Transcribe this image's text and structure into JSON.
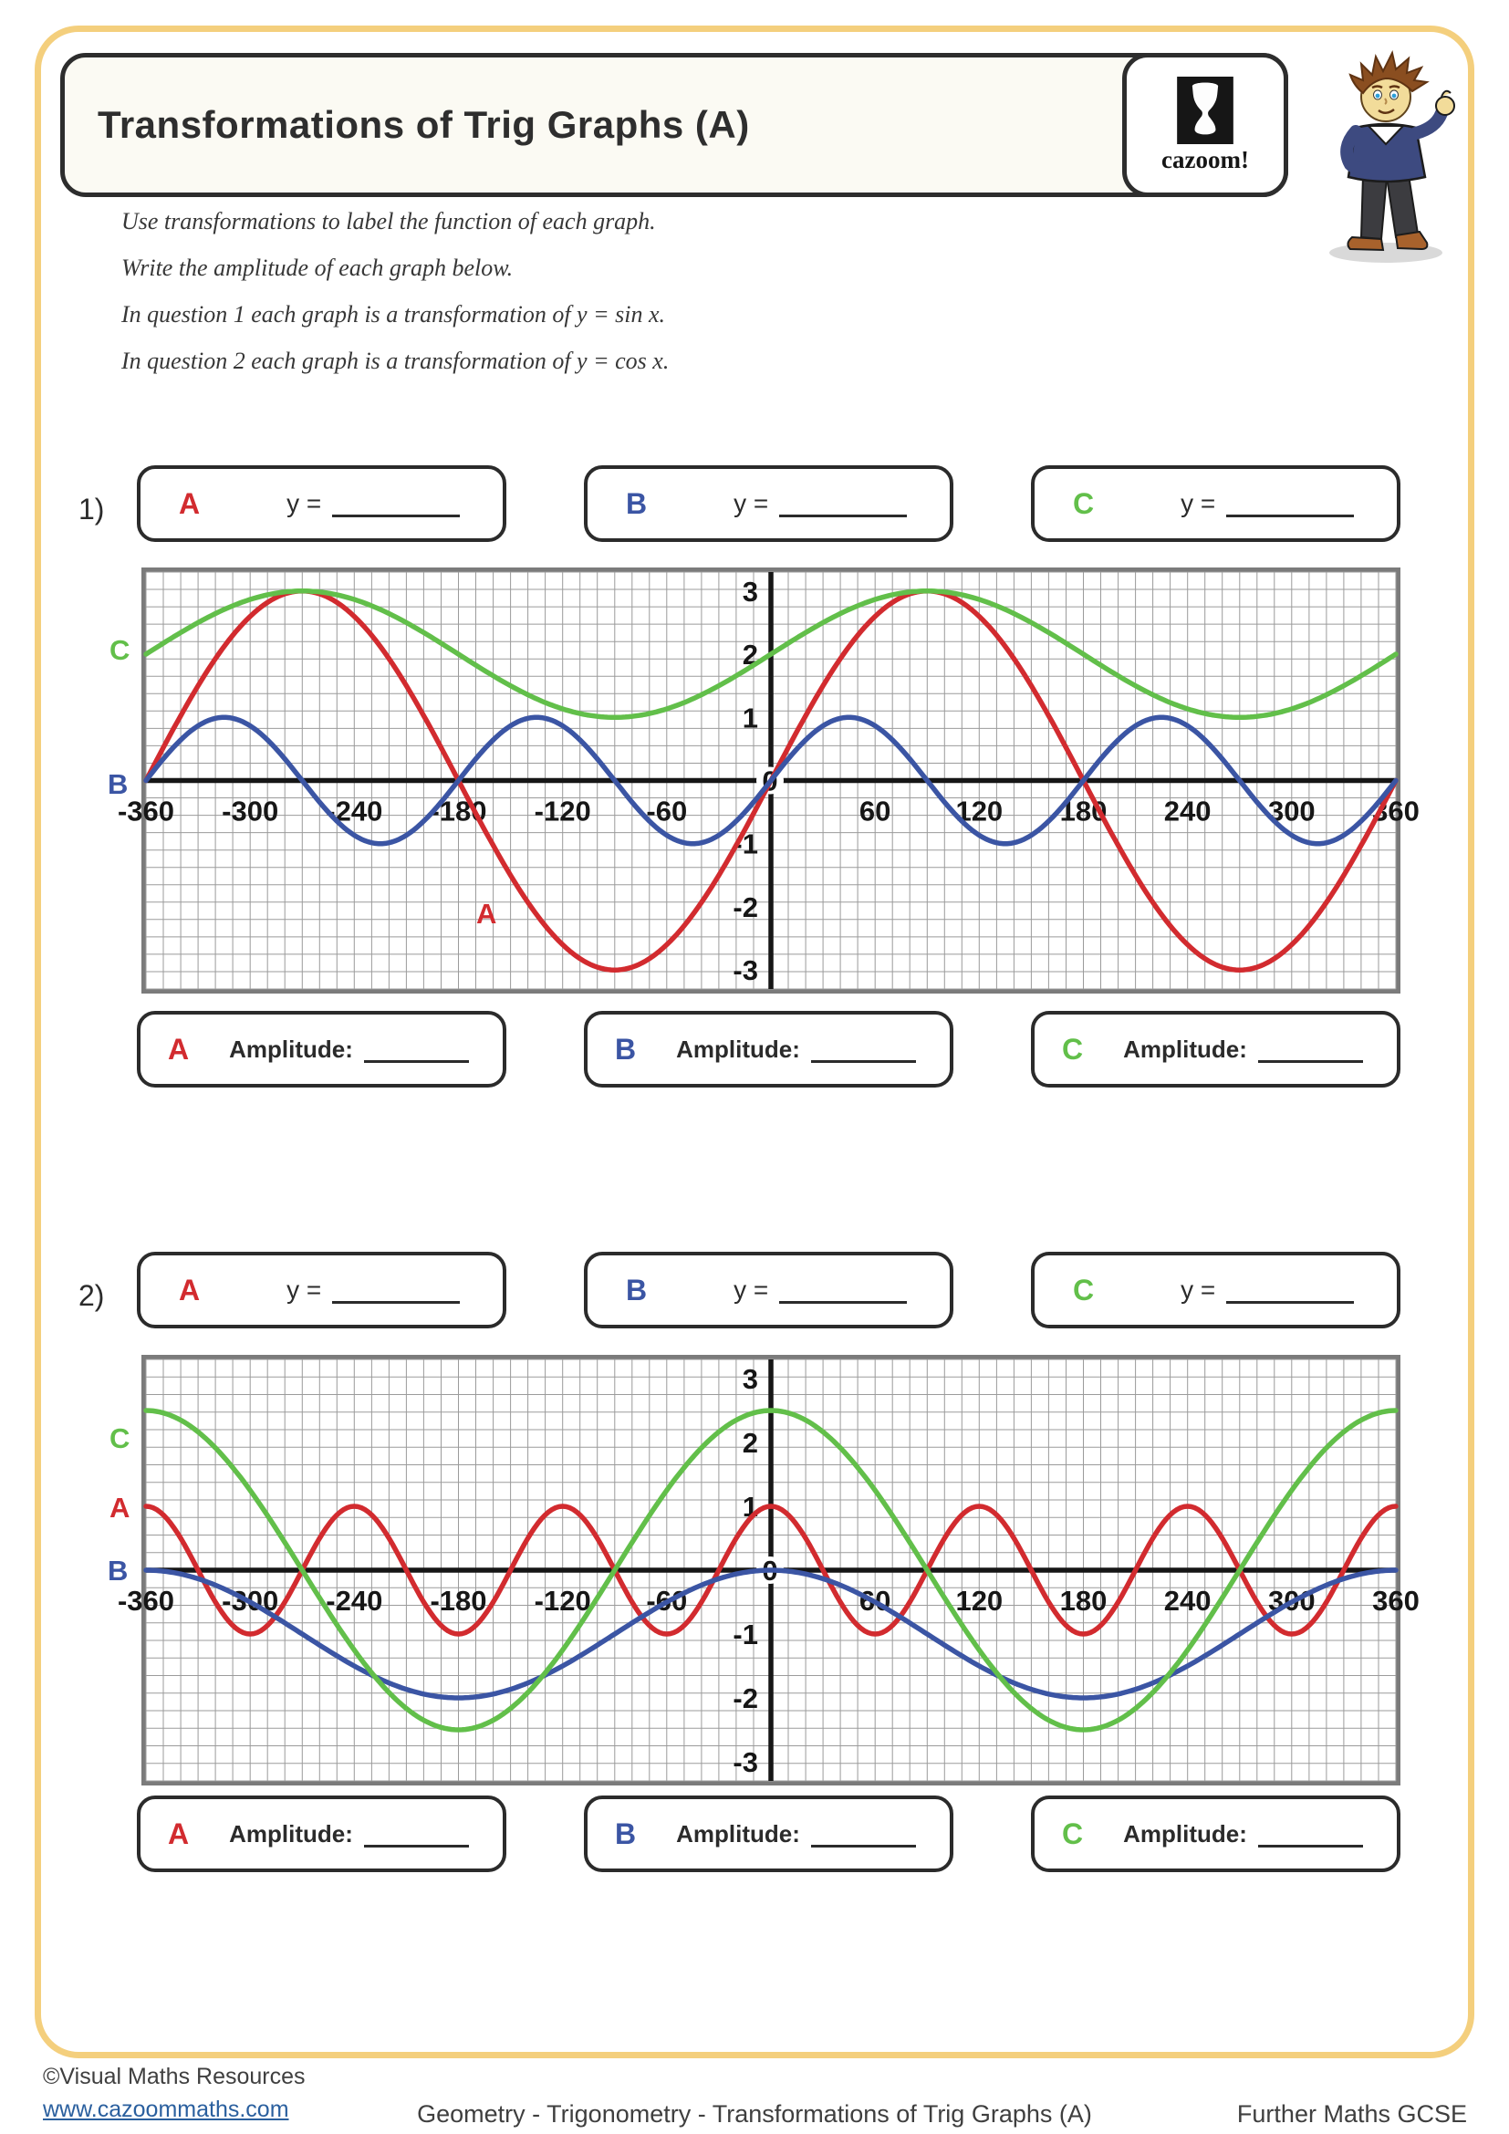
{
  "header": {
    "title": "Transformations of Trig Graphs (A)",
    "logo_text": "cazoom!"
  },
  "instructions": [
    "Use transformations to label the function of each graph.",
    "Write the amplitude of each graph below.",
    "In question 1 each graph is a transformation of y = sin x.",
    "In question 2 each graph is a transformation of y = cos x."
  ],
  "colors": {
    "curve_red": "#d22b2f",
    "curve_blue": "#3b55a4",
    "curve_green": "#62bf4a",
    "frame_yellow": "#f4cf7d",
    "link_blue": "#2a5f9e"
  },
  "questions": [
    {
      "number": "1)",
      "function_label": "y =",
      "amplitude_label": "Amplitude:",
      "curves": [
        {
          "letter": "A",
          "color": "#d22b2f"
        },
        {
          "letter": "B",
          "color": "#3b55a4"
        },
        {
          "letter": "C",
          "color": "#62bf4a"
        }
      ]
    },
    {
      "number": "2)",
      "function_label": "y =",
      "amplitude_label": "Amplitude:",
      "curves": [
        {
          "letter": "A",
          "color": "#d22b2f"
        },
        {
          "letter": "B",
          "color": "#3b55a4"
        },
        {
          "letter": "C",
          "color": "#62bf4a"
        }
      ]
    }
  ],
  "chart_data": [
    {
      "type": "line",
      "title": "Question 1 — transformations of y = sin x",
      "x_unit": "degrees",
      "xlim": [
        -360,
        360
      ],
      "ylim": [
        -3.3,
        3.3
      ],
      "x_ticks": [
        -360,
        -300,
        -240,
        -180,
        -120,
        -60,
        0,
        60,
        120,
        180,
        240,
        300,
        360
      ],
      "y_ticks": [
        3,
        2,
        1,
        0,
        -1,
        -2,
        -3
      ],
      "origin_label": "0",
      "grid": true,
      "series": [
        {
          "name": "A",
          "color": "#d22b2f",
          "base": "sin",
          "amplitude": 3,
          "frequency": 1,
          "vertical_shift": 0,
          "equation": "y = 3 sin x"
        },
        {
          "name": "B",
          "color": "#3b55a4",
          "base": "sin",
          "amplitude": 1,
          "frequency": 2,
          "vertical_shift": 0,
          "equation": "y = sin 2x"
        },
        {
          "name": "C",
          "color": "#62bf4a",
          "base": "sin",
          "amplitude": 1,
          "frequency": 1,
          "vertical_shift": 2,
          "equation": "y = sin x + 2"
        }
      ]
    },
    {
      "type": "line",
      "title": "Question 2 — transformations of y = cos x",
      "x_unit": "degrees",
      "xlim": [
        -360,
        360
      ],
      "ylim": [
        -3.3,
        3.3
      ],
      "x_ticks": [
        -360,
        -300,
        -240,
        -180,
        -120,
        -60,
        0,
        60,
        120,
        180,
        240,
        300,
        360
      ],
      "y_ticks": [
        3,
        2,
        1,
        0,
        -1,
        -2,
        -3
      ],
      "origin_label": "0",
      "grid": true,
      "series": [
        {
          "name": "A",
          "color": "#d22b2f",
          "base": "cos",
          "amplitude": 1,
          "frequency": 3,
          "vertical_shift": 0,
          "equation": "y = cos 3x"
        },
        {
          "name": "B",
          "color": "#3b55a4",
          "base": "cos",
          "amplitude": 1,
          "frequency": 1,
          "vertical_shift": -1,
          "equation": "y = cos x − 1"
        },
        {
          "name": "C",
          "color": "#62bf4a",
          "base": "cos",
          "amplitude": 2.5,
          "frequency": 1,
          "vertical_shift": 0,
          "equation": "y = 2.5 cos x"
        }
      ]
    }
  ],
  "footer": {
    "copyright": "©Visual Maths Resources",
    "website": "www.cazoommaths.com",
    "center": "Geometry - Trigonometry - Transformations of Trig Graphs (A)",
    "right": "Further Maths GCSE"
  }
}
